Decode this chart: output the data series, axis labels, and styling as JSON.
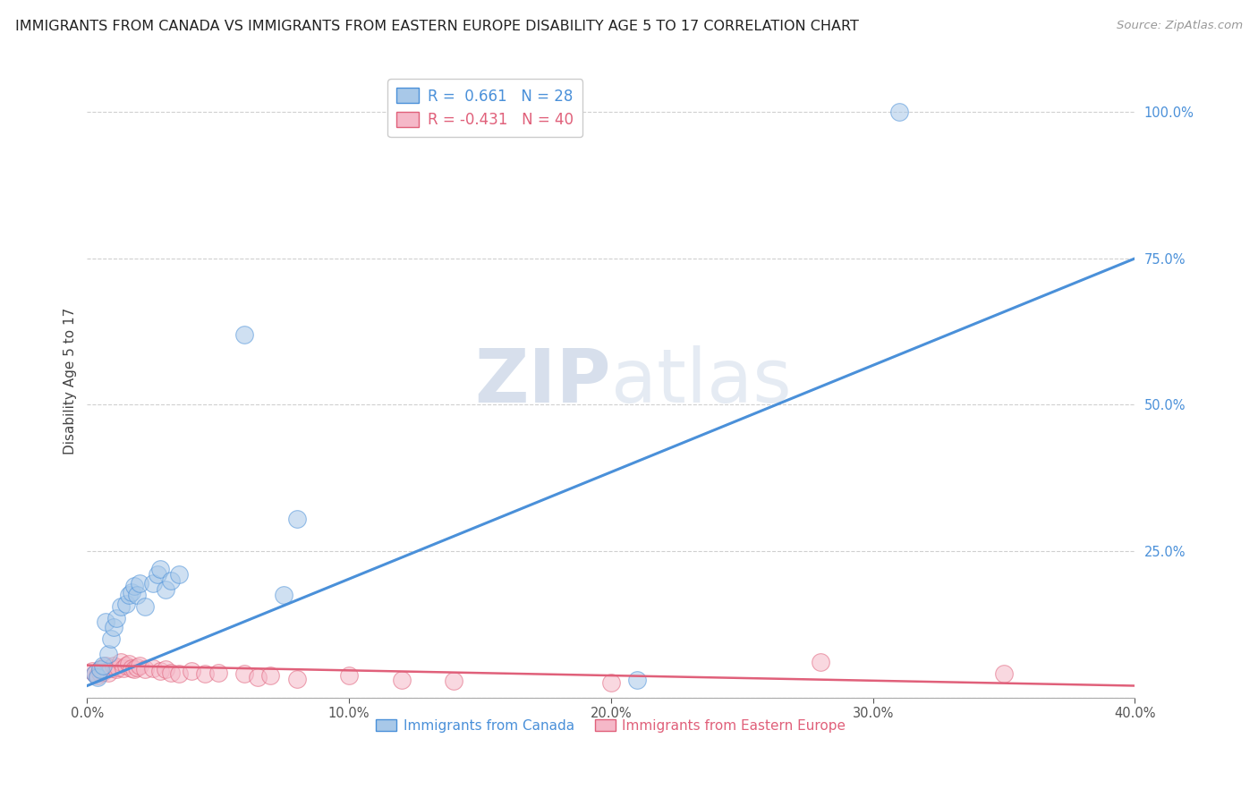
{
  "title": "IMMIGRANTS FROM CANADA VS IMMIGRANTS FROM EASTERN EUROPE DISABILITY AGE 5 TO 17 CORRELATION CHART",
  "source": "Source: ZipAtlas.com",
  "ylabel": "Disability Age 5 to 17",
  "legend_label_1": "Immigrants from Canada",
  "legend_label_2": "Immigrants from Eastern Europe",
  "R1": 0.661,
  "N1": 28,
  "R2": -0.431,
  "N2": 40,
  "color_blue": "#a8c8e8",
  "color_blue_dark": "#4a90d9",
  "color_blue_line": "#4a90d9",
  "color_pink": "#f5b8c8",
  "color_pink_dark": "#e0607a",
  "color_pink_line": "#e0607a",
  "color_right_axis": "#4a90d9",
  "xlim": [
    0.0,
    0.4
  ],
  "ylim": [
    0.0,
    1.08
  ],
  "xticks": [
    0.0,
    0.1,
    0.2,
    0.3,
    0.4
  ],
  "yticks_right": [
    0.25,
    0.5,
    0.75,
    1.0
  ],
  "canada_x": [
    0.003,
    0.004,
    0.005,
    0.006,
    0.007,
    0.008,
    0.009,
    0.01,
    0.011,
    0.013,
    0.015,
    0.016,
    0.017,
    0.018,
    0.019,
    0.02,
    0.022,
    0.025,
    0.027,
    0.028,
    0.03,
    0.032,
    0.035,
    0.06,
    0.075,
    0.08,
    0.21,
    0.31
  ],
  "canada_y": [
    0.04,
    0.035,
    0.048,
    0.055,
    0.13,
    0.075,
    0.1,
    0.12,
    0.135,
    0.155,
    0.16,
    0.175,
    0.18,
    0.19,
    0.175,
    0.195,
    0.155,
    0.195,
    0.21,
    0.22,
    0.185,
    0.2,
    0.21,
    0.62,
    0.175,
    0.305,
    0.03,
    1.0
  ],
  "eastern_x": [
    0.002,
    0.003,
    0.004,
    0.005,
    0.005,
    0.006,
    0.006,
    0.007,
    0.008,
    0.009,
    0.01,
    0.011,
    0.012,
    0.013,
    0.014,
    0.015,
    0.016,
    0.017,
    0.018,
    0.019,
    0.02,
    0.022,
    0.025,
    0.028,
    0.03,
    0.032,
    0.035,
    0.04,
    0.045,
    0.05,
    0.06,
    0.065,
    0.07,
    0.08,
    0.1,
    0.12,
    0.14,
    0.2,
    0.28,
    0.35
  ],
  "eastern_y": [
    0.045,
    0.04,
    0.038,
    0.048,
    0.042,
    0.05,
    0.044,
    0.055,
    0.042,
    0.05,
    0.055,
    0.048,
    0.052,
    0.06,
    0.05,
    0.055,
    0.058,
    0.05,
    0.048,
    0.052,
    0.055,
    0.048,
    0.05,
    0.045,
    0.048,
    0.042,
    0.04,
    0.045,
    0.04,
    0.042,
    0.04,
    0.035,
    0.038,
    0.032,
    0.038,
    0.03,
    0.028,
    0.025,
    0.06,
    0.04
  ],
  "canada_trendline_x": [
    0.0,
    0.4
  ],
  "canada_trendline_y": [
    0.02,
    0.75
  ],
  "eastern_trendline_x": [
    0.0,
    0.4
  ],
  "eastern_trendline_y": [
    0.055,
    0.02
  ],
  "background_color": "#ffffff",
  "grid_color": "#d0d0d0",
  "title_color": "#222222",
  "axis_label_color": "#444444",
  "title_fontsize": 11.5,
  "label_fontsize": 11,
  "tick_fontsize": 10.5,
  "source_fontsize": 9.5,
  "watermark_color": "#cdd8e8",
  "watermark_fontsize": 60
}
